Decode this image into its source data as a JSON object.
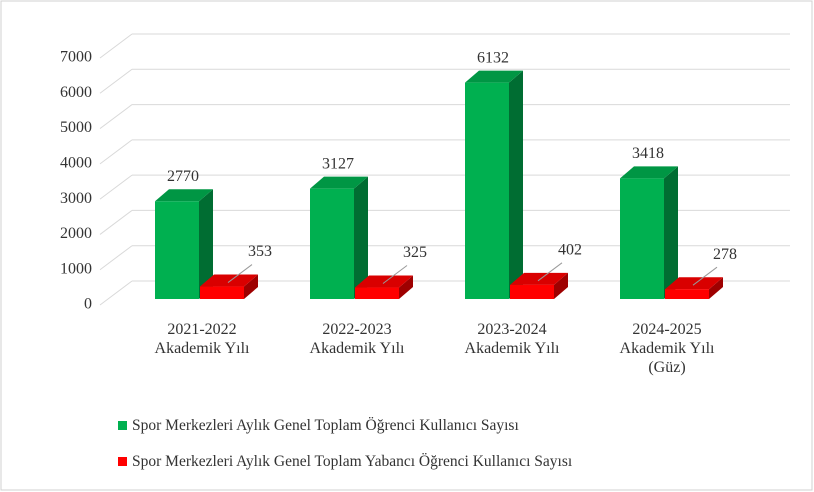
{
  "chart_data": {
    "type": "bar3d",
    "categories": [
      "2021-2022 Akademik Yılı",
      "2022-2023 Akademik Yılı",
      "2023-2024 Akademik Yılı",
      "2024-2025 Akademik Yılı (Güz)"
    ],
    "series": [
      {
        "name": "Spor Merkezleri Aylık Genel Toplam Öğrenci Kullanıcı Sayısı",
        "color": "#00b050",
        "values": [
          2770,
          3127,
          6132,
          3418
        ]
      },
      {
        "name": "Spor Merkezleri Aylık Genel Toplam Yabancı Öğrenci Kullanıcı Sayısı",
        "color": "#ff0000",
        "values": [
          353,
          325,
          402,
          278
        ]
      }
    ],
    "ylim": [
      0,
      7000
    ],
    "yticks": [
      0,
      1000,
      2000,
      3000,
      4000,
      5000,
      6000,
      7000
    ],
    "grid": true,
    "legend": "bottom"
  }
}
